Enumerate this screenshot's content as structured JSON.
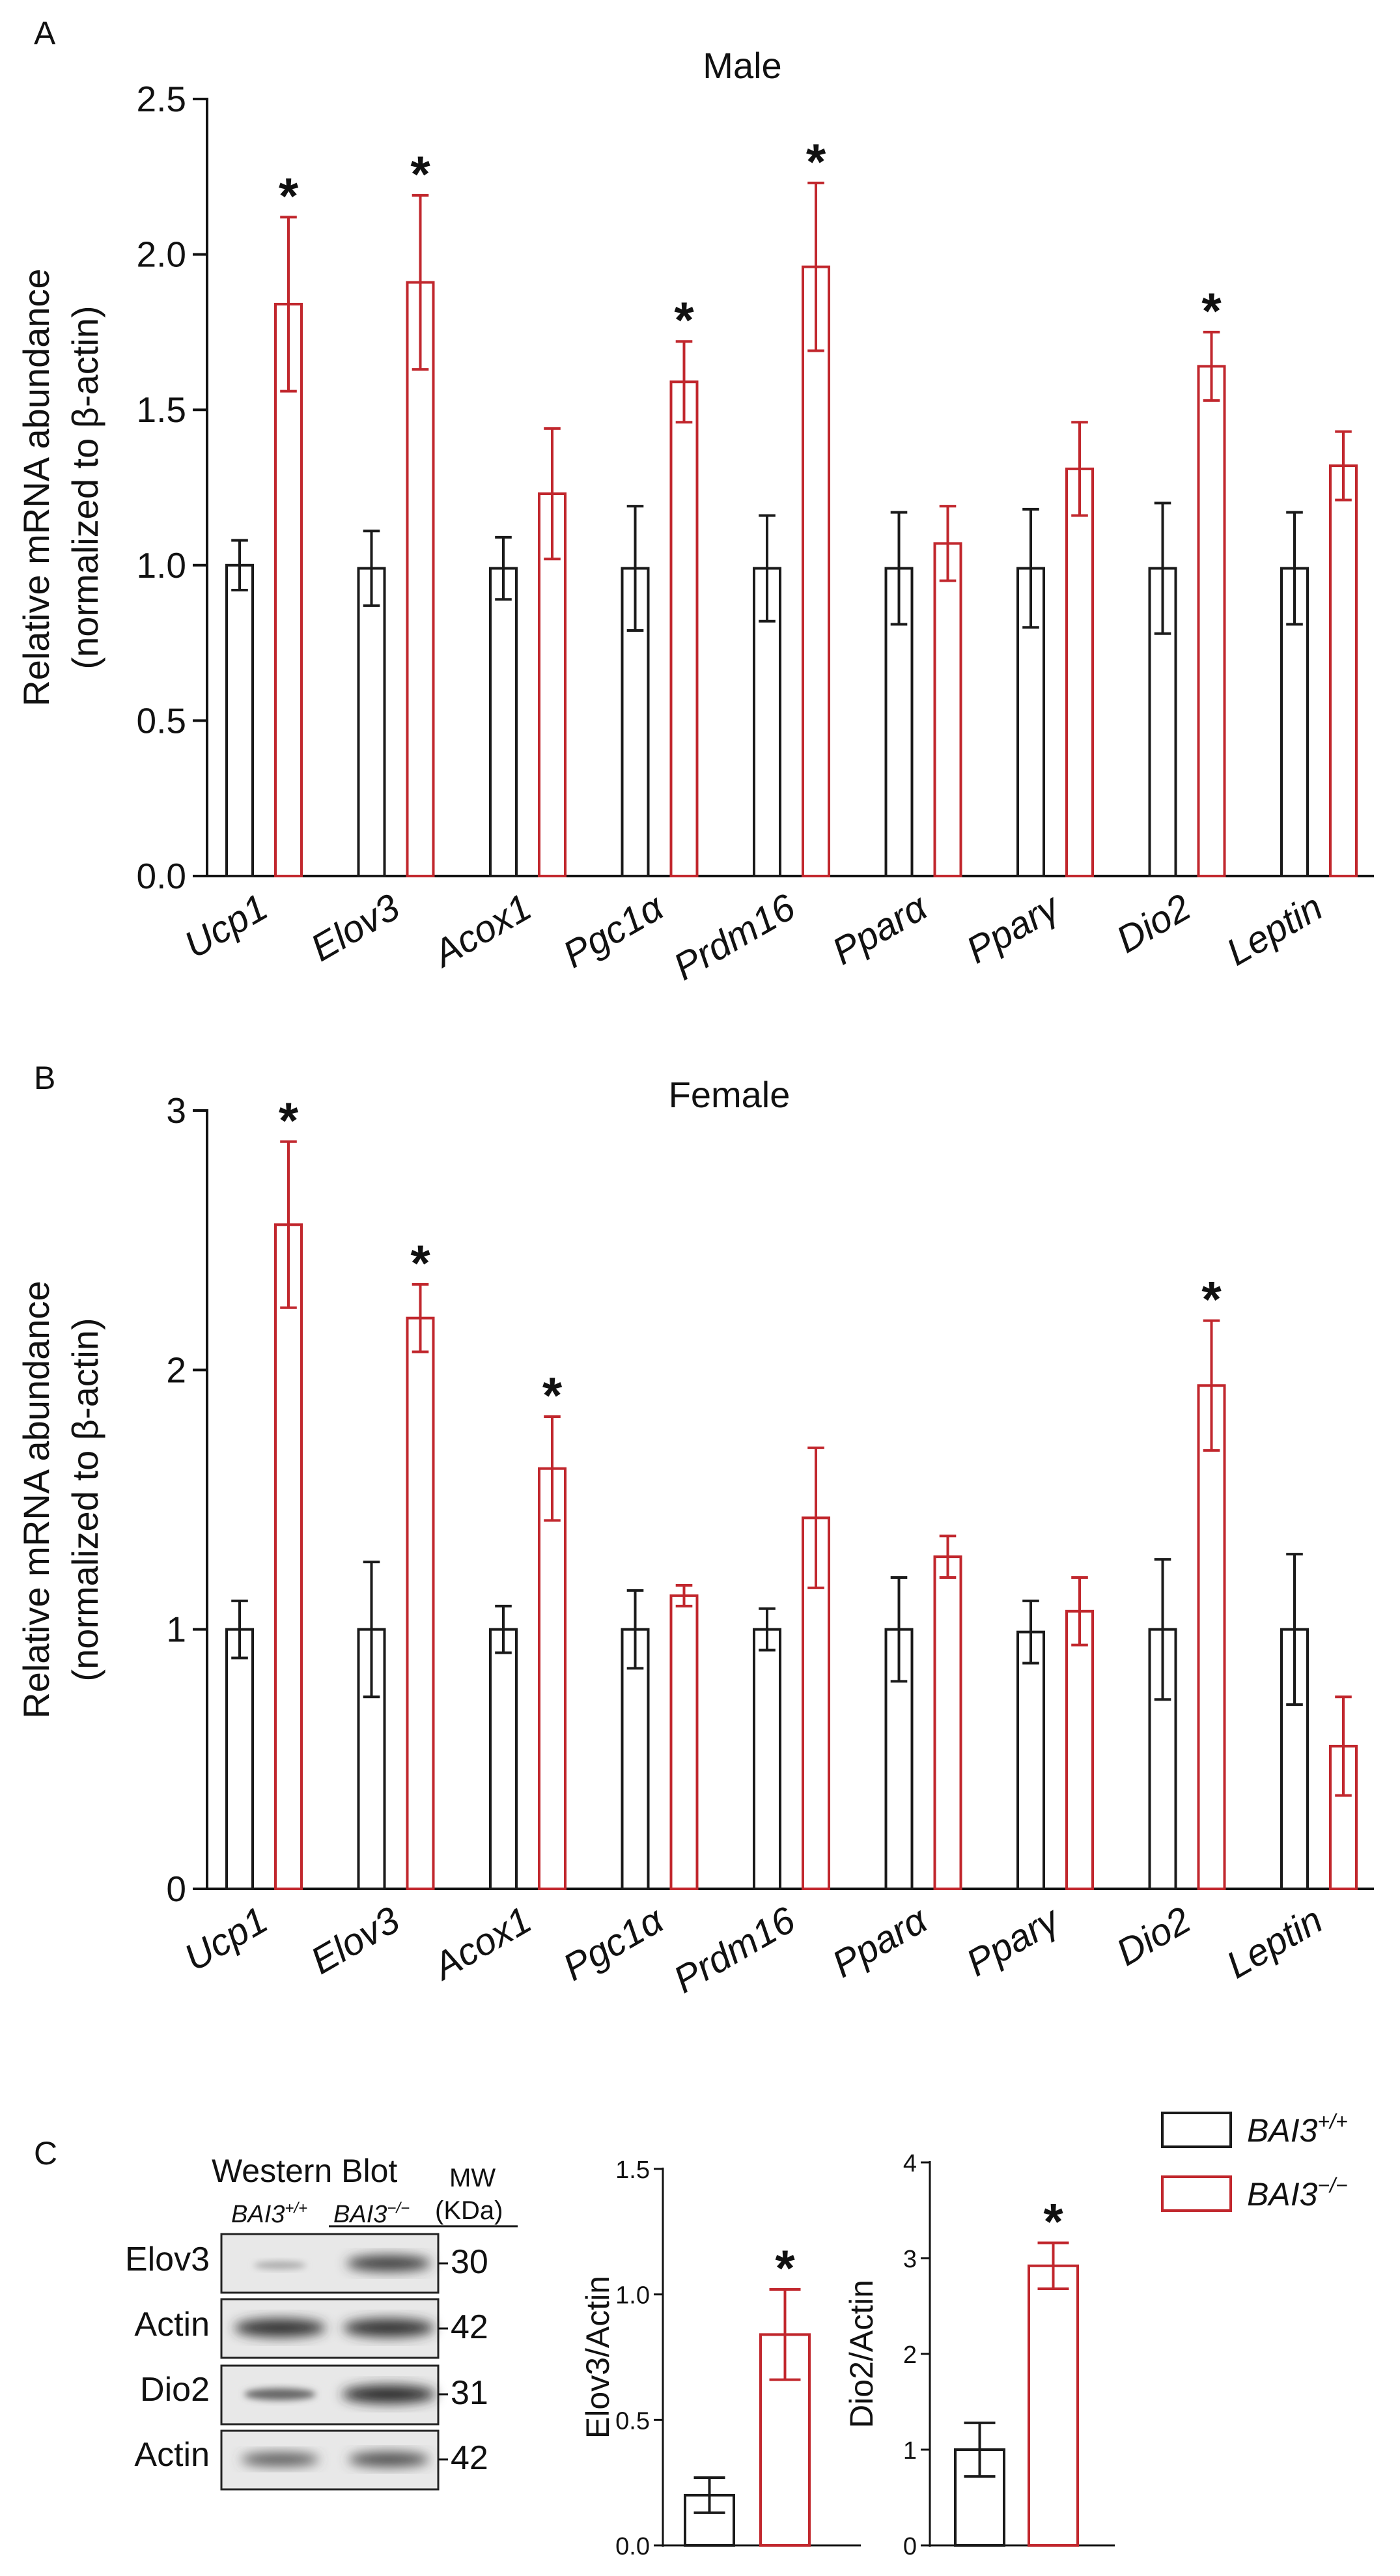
{
  "colors": {
    "wt": "#1a1a1a",
    "ko": "#c1272d"
  },
  "panels": {
    "A": "A",
    "B": "B",
    "C": "C"
  },
  "chart_data": [
    {
      "id": "male",
      "type": "bar",
      "title": "Male",
      "ylabel_line1": "Relative mRNA abundance",
      "ylabel_line2": "(normalized to β-actin)",
      "ylim": [
        0,
        2.5
      ],
      "yticks": [
        "0.0",
        "0.5",
        "1.0",
        "1.5",
        "2.0",
        "2.5"
      ],
      "categories": [
        "Ucp1",
        "Elov3",
        "Acox1",
        "Pgc1α",
        "Prdm16",
        "Pparα",
        "Pparγ",
        "Dio2",
        "Leptin"
      ],
      "series": [
        {
          "name": "BAI3+/+",
          "values": [
            1.0,
            0.99,
            0.99,
            0.99,
            0.99,
            0.99,
            0.99,
            0.99,
            0.99
          ],
          "errors": [
            0.08,
            0.12,
            0.1,
            0.2,
            0.17,
            0.18,
            0.19,
            0.21,
            0.18
          ]
        },
        {
          "name": "BAI3-/-",
          "values": [
            1.84,
            1.91,
            1.23,
            1.59,
            1.96,
            1.07,
            1.31,
            1.64,
            1.32
          ],
          "errors": [
            0.28,
            0.28,
            0.21,
            0.13,
            0.27,
            0.12,
            0.15,
            0.11,
            0.11
          ]
        }
      ],
      "significant": [
        true,
        true,
        false,
        true,
        true,
        false,
        false,
        true,
        false
      ],
      "star": "*"
    },
    {
      "id": "female",
      "type": "bar",
      "title": "Female",
      "ylabel_line1": "Relative mRNA abundance",
      "ylabel_line2": "(normalized to β-actin)",
      "ylim": [
        0,
        3
      ],
      "yticks": [
        "0",
        "1",
        "2",
        "3"
      ],
      "categories": [
        "Ucp1",
        "Elov3",
        "Acox1",
        "Pgc1α",
        "Prdm16",
        "Pparα",
        "Pparγ",
        "Dio2",
        "Leptin"
      ],
      "series": [
        {
          "name": "BAI3+/+",
          "values": [
            1.0,
            1.0,
            1.0,
            1.0,
            1.0,
            1.0,
            0.99,
            1.0,
            1.0
          ],
          "errors": [
            0.11,
            0.26,
            0.09,
            0.15,
            0.08,
            0.2,
            0.12,
            0.27,
            0.29
          ]
        },
        {
          "name": "BAI3-/-",
          "values": [
            2.56,
            2.2,
            1.62,
            1.13,
            1.43,
            1.28,
            1.07,
            1.94,
            0.55
          ],
          "errors": [
            0.32,
            0.13,
            0.2,
            0.04,
            0.27,
            0.08,
            0.13,
            0.25,
            0.19
          ]
        }
      ],
      "significant": [
        true,
        true,
        true,
        false,
        false,
        false,
        false,
        true,
        false
      ],
      "star": "*"
    },
    {
      "id": "elov3-actin",
      "type": "bar",
      "ylabel": "Elov3/Actin",
      "ylim": [
        0,
        1.5
      ],
      "yticks": [
        "0.0",
        "0.5",
        "1.0",
        "1.5"
      ],
      "categories": [
        "BAI3+/+",
        "BAI3-/-"
      ],
      "values": [
        0.2,
        0.84
      ],
      "errors": [
        0.07,
        0.18
      ],
      "significant": [
        false,
        true
      ],
      "star": "*"
    },
    {
      "id": "dio2-actin",
      "type": "bar",
      "ylabel": "Dio2/Actin",
      "ylim": [
        0,
        4
      ],
      "yticks": [
        "0",
        "1",
        "2",
        "3",
        "4"
      ],
      "categories": [
        "BAI3+/+",
        "BAI3-/-"
      ],
      "values": [
        1.0,
        2.92
      ],
      "errors": [
        0.28,
        0.24
      ],
      "significant": [
        false,
        true
      ],
      "star": "*"
    }
  ],
  "legend": {
    "wt_base": "BAI3",
    "wt_sup": "+/+",
    "ko_base": "BAI3",
    "ko_sup": "−/−"
  },
  "western": {
    "title": "Western Blot",
    "mw_label1": "MW",
    "mw_label2": "(KDa)",
    "lane1_base": "BAI3",
    "lane1_sup": "+/+",
    "lane2_base": "BAI3",
    "lane2_sup": "−/−",
    "blots": [
      {
        "label": "Elov3",
        "mw": "30"
      },
      {
        "label": "Actin",
        "mw": "42"
      },
      {
        "label": "Dio2",
        "mw": "31"
      },
      {
        "label": "Actin",
        "mw": "42"
      }
    ]
  }
}
